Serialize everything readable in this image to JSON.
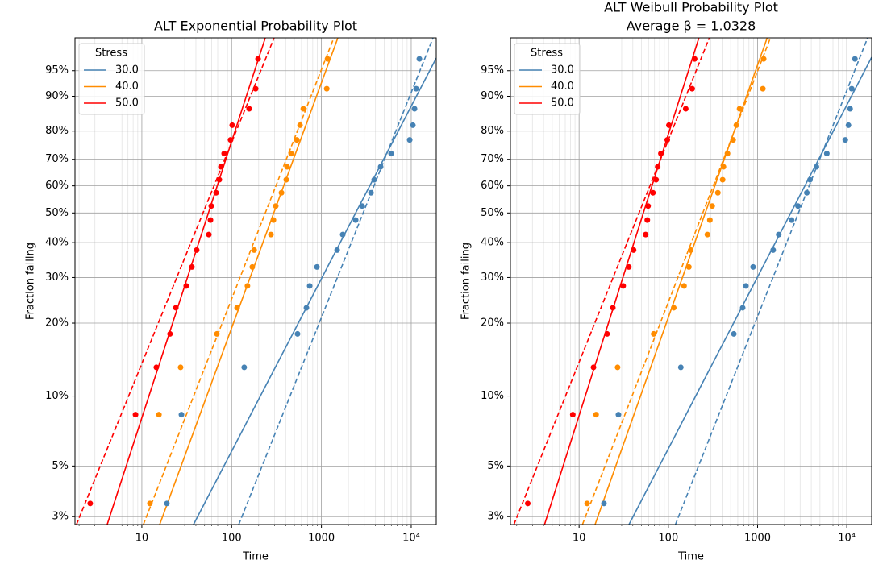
{
  "chart_data": [
    {
      "type": "probability",
      "title": "ALT Exponential Probability Plot",
      "xlabel": "Time",
      "ylabel": "Fraction failing",
      "xscale": "log",
      "yscale": "weibull",
      "grid": true,
      "legend": "upper left",
      "legend_title": "Stress",
      "xlim": [
        1.8,
        19000
      ],
      "ylim": [
        2.77,
        98.5
      ],
      "xticks": [
        10,
        100,
        1000,
        {
          "value": 10000,
          "label": "10⁴"
        }
      ],
      "xminorticks": [
        2,
        3,
        4,
        5,
        6,
        7,
        8,
        9,
        20,
        30,
        40,
        50,
        60,
        70,
        80,
        90,
        200,
        300,
        400,
        500,
        600,
        700,
        800,
        900,
        2000,
        3000,
        4000,
        5000,
        6000,
        7000,
        8000,
        9000
      ],
      "yticks": [
        {
          "value": 3,
          "label": "3%"
        },
        {
          "value": 5,
          "label": "5%"
        },
        {
          "value": 10,
          "label": "10%"
        },
        {
          "value": 20,
          "label": "20%"
        },
        {
          "value": 30,
          "label": "30%"
        },
        {
          "value": 40,
          "label": "40%"
        },
        {
          "value": 50,
          "label": "50%"
        },
        {
          "value": 60,
          "label": "60%"
        },
        {
          "value": 70,
          "label": "70%"
        },
        {
          "value": 80,
          "label": "80%"
        },
        {
          "value": 90,
          "label": "90%"
        },
        {
          "value": 95,
          "label": "95%"
        }
      ],
      "series": [
        {
          "name": "30.0",
          "color": "#4682b4",
          "x": [
            19.0,
            27.6,
            138,
            542,
            681,
            740,
            891,
            1496,
            1727,
            2404,
            2838,
            3565,
            3873,
            4565,
            5971,
            9616,
            10440,
            10890,
            11350,
            12330
          ],
          "values": [
            3.43,
            8.33,
            13.2,
            18.1,
            23.0,
            27.9,
            32.8,
            37.7,
            42.6,
            47.5,
            52.5,
            57.4,
            62.3,
            67.2,
            72.1,
            77.0,
            81.9,
            86.8,
            91.7,
            96.6
          ],
          "fit": {
            "x": [
              37.6,
              19000
            ],
            "values": [
              2.77,
              96.7
            ]
          },
          "fit_dashed": {
            "x": [
              120,
              17500
            ],
            "values": [
              2.77,
              98.5
            ]
          }
        },
        {
          "name": "40.0",
          "color": "#ff8c00",
          "x": [
            12.3,
            15.5,
            27.0,
            68.5,
            115,
            150,
            170,
            178,
            274,
            292,
            310,
            359,
            406,
            415,
            460,
            532,
            578,
            628,
            1146,
            1170
          ],
          "values": [
            3.43,
            8.33,
            13.2,
            18.1,
            23.0,
            27.9,
            32.8,
            37.7,
            42.6,
            47.5,
            52.5,
            57.4,
            62.3,
            67.2,
            72.1,
            77.0,
            81.9,
            86.8,
            91.7,
            96.6
          ],
          "fit": {
            "x": [
              15.8,
              1524
            ],
            "values": [
              2.77,
              98.5
            ]
          },
          "fit_dashed": {
            "x": [
              10.4,
              1374
            ],
            "values": [
              2.77,
              98.5
            ]
          }
        },
        {
          "name": "50.0",
          "color": "#ff0000",
          "x": [
            2.66,
            8.5,
            14.5,
            20.6,
            23.9,
            31.2,
            36.1,
            40.8,
            55.7,
            58.1,
            59.3,
            67.2,
            72.9,
            76.0,
            82.6,
            97.3,
            101.4,
            156.7,
            185,
            197
          ],
          "values": [
            3.43,
            8.33,
            13.2,
            18.1,
            23.0,
            27.9,
            32.8,
            37.7,
            42.6,
            47.5,
            52.5,
            57.4,
            62.3,
            67.2,
            72.1,
            77.0,
            81.9,
            86.8,
            91.7,
            96.6
          ],
          "fit": {
            "x": [
              4.11,
              237
            ],
            "values": [
              2.77,
              98.5
            ]
          },
          "fit_dashed": {
            "x": [
              1.87,
              297
            ],
            "values": [
              2.77,
              98.5
            ]
          }
        }
      ]
    },
    {
      "type": "probability",
      "title": "ALT Weibull Probability Plot",
      "subtitle": "Average β = 1.0328",
      "xlabel": "Time",
      "ylabel": "Fraction failing",
      "xscale": "log",
      "yscale": "weibull",
      "grid": true,
      "legend": "upper left",
      "legend_title": "Stress",
      "xlim": [
        1.7,
        19000
      ],
      "ylim": [
        2.77,
        98.5
      ],
      "xticks": [
        10,
        100,
        1000,
        {
          "value": 10000,
          "label": "10⁴"
        }
      ],
      "xminorticks": [
        2,
        3,
        4,
        5,
        6,
        7,
        8,
        9,
        20,
        30,
        40,
        50,
        60,
        70,
        80,
        90,
        200,
        300,
        400,
        500,
        600,
        700,
        800,
        900,
        2000,
        3000,
        4000,
        5000,
        6000,
        7000,
        8000,
        9000
      ],
      "yticks": [
        {
          "value": 3,
          "label": "3%"
        },
        {
          "value": 5,
          "label": "5%"
        },
        {
          "value": 10,
          "label": "10%"
        },
        {
          "value": 20,
          "label": "20%"
        },
        {
          "value": 30,
          "label": "30%"
        },
        {
          "value": 40,
          "label": "40%"
        },
        {
          "value": 50,
          "label": "50%"
        },
        {
          "value": 60,
          "label": "60%"
        },
        {
          "value": 70,
          "label": "70%"
        },
        {
          "value": 80,
          "label": "80%"
        },
        {
          "value": 90,
          "label": "90%"
        },
        {
          "value": 95,
          "label": "95%"
        }
      ],
      "series": [
        {
          "name": "30.0",
          "color": "#4682b4",
          "x": [
            19.0,
            27.6,
            138,
            542,
            681,
            740,
            891,
            1496,
            1727,
            2404,
            2838,
            3565,
            3873,
            4565,
            5971,
            9616,
            10440,
            10890,
            11350,
            12330
          ],
          "values": [
            3.43,
            8.33,
            13.2,
            18.1,
            23.0,
            27.9,
            32.8,
            37.7,
            42.6,
            47.5,
            52.5,
            57.4,
            62.3,
            67.2,
            72.1,
            77.0,
            81.9,
            86.8,
            91.7,
            96.6
          ],
          "fit": {
            "x": [
              36.2,
              19000
            ],
            "values": [
              2.77,
              96.8
            ]
          },
          "fit_dashed": {
            "x": [
              120,
              17100
            ],
            "values": [
              2.77,
              98.5
            ]
          }
        },
        {
          "name": "40.0",
          "color": "#ff8c00",
          "x": [
            12.3,
            15.5,
            27.0,
            68.5,
            115,
            150,
            170,
            178,
            274,
            292,
            310,
            359,
            406,
            415,
            460,
            532,
            578,
            628,
            1146,
            1170
          ],
          "values": [
            3.43,
            8.33,
            13.2,
            18.1,
            23.0,
            27.9,
            32.8,
            37.7,
            42.6,
            47.5,
            52.5,
            57.4,
            62.3,
            67.2,
            72.1,
            77.0,
            81.9,
            86.8,
            91.7,
            96.6
          ],
          "fit": {
            "x": [
              15.1,
              1282
            ],
            "values": [
              2.77,
              98.5
            ]
          },
          "fit_dashed": {
            "x": [
              10.9,
              1393
            ],
            "values": [
              2.77,
              98.5
            ]
          }
        },
        {
          "name": "50.0",
          "color": "#ff0000",
          "x": [
            2.66,
            8.5,
            14.5,
            20.6,
            23.9,
            31.2,
            36.1,
            40.8,
            55.7,
            58.1,
            59.3,
            67.2,
            72.9,
            76.0,
            82.6,
            97.3,
            101.4,
            156.7,
            185,
            197
          ],
          "values": [
            3.43,
            8.33,
            13.2,
            18.1,
            23.0,
            27.9,
            32.8,
            37.7,
            42.6,
            47.5,
            52.5,
            57.4,
            62.3,
            67.2,
            72.1,
            77.0,
            81.9,
            86.8,
            91.7,
            96.6
          ],
          "fit": {
            "x": [
              4.1,
              220
            ],
            "values": [
              2.77,
              98.5
            ]
          },
          "fit_dashed": {
            "x": [
              1.86,
              288
            ],
            "values": [
              2.77,
              98.5
            ]
          }
        }
      ]
    }
  ]
}
